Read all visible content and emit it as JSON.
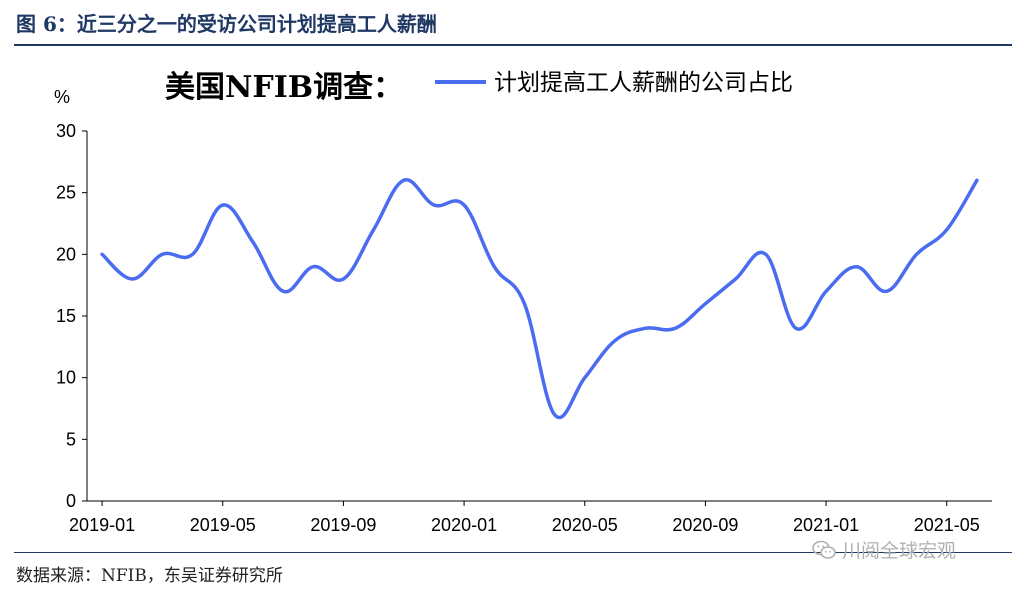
{
  "figure": {
    "title": "图 6：近三分之一的受访公司计划提高工人薪酬",
    "source": "数据来源：NFIB，东吴证券研究所",
    "watermark": "川阅全球宏观",
    "watermark_icon": "wechat-icon"
  },
  "chart_data": {
    "type": "line",
    "title": "美国NFIB调查：",
    "ylabel": "%",
    "ylim": [
      0,
      30
    ],
    "yticks": [
      0,
      5,
      10,
      15,
      20,
      25,
      30
    ],
    "xticks": [
      "2019-01",
      "2019-05",
      "2019-09",
      "2020-01",
      "2020-05",
      "2020-09",
      "2021-01",
      "2021-05"
    ],
    "grid": false,
    "legend_position": "top-right",
    "series": [
      {
        "name": "计划提高工人薪酬的公司占比",
        "color": "#4a6cf0",
        "x": [
          "2019-01",
          "2019-02",
          "2019-03",
          "2019-04",
          "2019-05",
          "2019-06",
          "2019-07",
          "2019-08",
          "2019-09",
          "2019-10",
          "2019-11",
          "2019-12",
          "2020-01",
          "2020-02",
          "2020-03",
          "2020-04",
          "2020-05",
          "2020-06",
          "2020-07",
          "2020-08",
          "2020-09",
          "2020-10",
          "2020-11",
          "2020-12",
          "2021-01",
          "2021-02",
          "2021-03",
          "2021-04",
          "2021-05",
          "2021-06"
        ],
        "values": [
          20,
          18,
          20,
          20,
          24,
          21,
          17,
          19,
          18,
          22,
          26,
          24,
          24,
          19,
          16,
          7,
          10,
          13,
          14,
          14,
          16,
          18,
          20,
          14,
          17,
          19,
          17,
          20,
          22,
          26
        ]
      }
    ]
  }
}
